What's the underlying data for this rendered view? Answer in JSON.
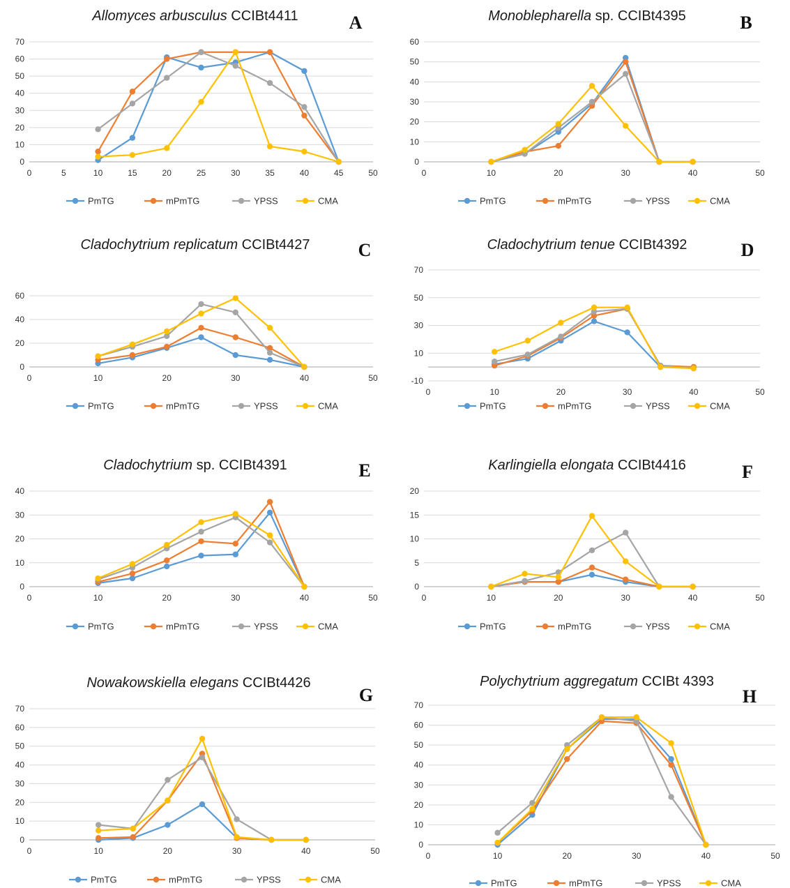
{
  "legend_labels": [
    "PmTG",
    "mPmTG",
    "YPSS",
    "CMA"
  ],
  "colors": {
    "PmTG": "#5b9bd5",
    "mPmTG": "#ed7d31",
    "YPSS": "#a5a5a5",
    "CMA": "#ffc000"
  },
  "chart_data": [
    {
      "type": "line",
      "letter": "A",
      "title_italic": "Allomyces arbusculus",
      "title_rest": " CCIBt4411",
      "xlim": [
        0,
        50
      ],
      "ylim": [
        0,
        70
      ],
      "xticks": [
        0,
        5,
        10,
        15,
        20,
        25,
        30,
        35,
        40,
        45,
        50
      ],
      "yticks": [
        0,
        10,
        20,
        30,
        40,
        50,
        60,
        70
      ],
      "x": [
        10,
        15,
        20,
        25,
        30,
        35,
        40,
        45
      ],
      "series": [
        {
          "name": "PmTG",
          "values": [
            1,
            14,
            61,
            55,
            58,
            64,
            53,
            0
          ]
        },
        {
          "name": "mPmTG",
          "values": [
            6,
            41,
            60,
            64,
            64,
            64,
            27,
            0
          ]
        },
        {
          "name": "YPSS",
          "values": [
            19,
            34,
            49,
            64,
            56,
            46,
            32,
            0
          ]
        },
        {
          "name": "CMA",
          "values": [
            3,
            4,
            8,
            35,
            64,
            9,
            6,
            0
          ]
        }
      ]
    },
    {
      "type": "line",
      "letter": "B",
      "title_italic": "Monoblepharella",
      "title_rest": " sp. CCIBt4395",
      "xlim": [
        0,
        50
      ],
      "ylim": [
        0,
        60
      ],
      "xticks": [
        0,
        10,
        20,
        30,
        40,
        50
      ],
      "yticks": [
        0,
        10,
        20,
        30,
        40,
        50,
        60
      ],
      "x": [
        10,
        15,
        20,
        25,
        30,
        35,
        40
      ],
      "series": [
        {
          "name": "PmTG",
          "values": [
            0,
            4,
            15,
            29,
            52,
            0,
            0
          ]
        },
        {
          "name": "mPmTG",
          "values": [
            0,
            5,
            8,
            28,
            50,
            0,
            0
          ]
        },
        {
          "name": "YPSS",
          "values": [
            0,
            4,
            17,
            30,
            44,
            0,
            0
          ]
        },
        {
          "name": "CMA",
          "values": [
            0,
            6,
            19,
            38,
            18,
            0,
            0
          ]
        }
      ]
    },
    {
      "type": "line",
      "letter": "C",
      "title_italic": "Cladochytrium replicatum",
      "title_rest": " CCIBt4427",
      "xlim": [
        0,
        50
      ],
      "ylim": [
        0,
        70
      ],
      "xticks": [
        0,
        10,
        20,
        30,
        40,
        50
      ],
      "yticks": [
        0,
        20,
        40,
        60
      ],
      "x": [
        10,
        15,
        20,
        25,
        30,
        35,
        40
      ],
      "series": [
        {
          "name": "PmTG",
          "values": [
            3,
            8,
            16,
            25,
            10,
            6,
            0
          ]
        },
        {
          "name": "mPmTG",
          "values": [
            6,
            10,
            17,
            33,
            25,
            16,
            0
          ]
        },
        {
          "name": "YPSS",
          "values": [
            9,
            17,
            26,
            53,
            46,
            12,
            0
          ]
        },
        {
          "name": "CMA",
          "values": [
            9,
            19,
            30,
            45,
            58,
            33,
            0
          ]
        }
      ]
    },
    {
      "type": "line",
      "letter": "D",
      "title_italic": "Cladochytrium tenue",
      "title_rest": " CCIBt4392",
      "xlim": [
        0,
        50
      ],
      "ylim": [
        -10,
        70
      ],
      "xticks": [
        0,
        10,
        20,
        30,
        40,
        50
      ],
      "yticks": [
        -10,
        10,
        30,
        50,
        70
      ],
      "x": [
        10,
        15,
        20,
        25,
        30,
        35,
        40
      ],
      "series": [
        {
          "name": "PmTG",
          "values": [
            2,
            6,
            19,
            33,
            25,
            0,
            0
          ]
        },
        {
          "name": "mPmTG",
          "values": [
            1,
            8,
            21,
            37,
            42,
            1,
            0
          ]
        },
        {
          "name": "YPSS",
          "values": [
            4,
            9,
            22,
            40,
            42,
            1,
            -1
          ]
        },
        {
          "name": "CMA",
          "values": [
            11,
            19,
            32,
            43,
            43,
            0,
            -1
          ]
        }
      ]
    },
    {
      "type": "line",
      "letter": "E",
      "title_italic": "Cladochytrium",
      "title_rest": " sp. CCIBt4391",
      "xlim": [
        0,
        50
      ],
      "ylim": [
        0,
        40
      ],
      "xticks": [
        0,
        10,
        20,
        30,
        40,
        50
      ],
      "yticks": [
        0,
        10,
        20,
        30,
        40
      ],
      "x": [
        10,
        15,
        20,
        25,
        30,
        35,
        40
      ],
      "series": [
        {
          "name": "PmTG",
          "values": [
            1.5,
            3.5,
            8.5,
            13,
            13.5,
            31,
            0
          ]
        },
        {
          "name": "mPmTG",
          "values": [
            2,
            5.5,
            11,
            19,
            18,
            35.5,
            0
          ]
        },
        {
          "name": "YPSS",
          "values": [
            3,
            8,
            16,
            23,
            29,
            18.5,
            0
          ]
        },
        {
          "name": "CMA",
          "values": [
            3.5,
            9.5,
            17.5,
            27,
            30.5,
            21.5,
            0
          ]
        }
      ]
    },
    {
      "type": "line",
      "letter": "F",
      "title_italic": "Karlingiella elongata",
      "title_rest": " CCIBt4416",
      "xlim": [
        0,
        50
      ],
      "ylim": [
        0,
        20
      ],
      "xticks": [
        0,
        10,
        20,
        30,
        40,
        50
      ],
      "yticks": [
        0,
        5,
        10,
        15,
        20
      ],
      "x": [
        10,
        15,
        20,
        25,
        30,
        35,
        40
      ],
      "series": [
        {
          "name": "PmTG",
          "values": [
            0,
            1,
            1,
            2.5,
            1,
            0,
            0
          ]
        },
        {
          "name": "mPmTG",
          "values": [
            0,
            1,
            1,
            4,
            1.5,
            0,
            0
          ]
        },
        {
          "name": "YPSS",
          "values": [
            0,
            1.2,
            3,
            7.6,
            11.3,
            0,
            0
          ]
        },
        {
          "name": "CMA",
          "values": [
            0,
            2.7,
            2,
            14.8,
            5.3,
            0,
            0
          ]
        }
      ]
    },
    {
      "type": "line",
      "letter": "G",
      "title_italic": "Nowakowskiella elegans",
      "title_rest": " CCIBt4426",
      "xlim": [
        0,
        50
      ],
      "ylim": [
        0,
        70
      ],
      "xticks": [
        0,
        10,
        20,
        30,
        40,
        50
      ],
      "yticks": [
        0,
        10,
        20,
        30,
        40,
        50,
        60,
        70
      ],
      "x": [
        10,
        15,
        20,
        25,
        30,
        35,
        40
      ],
      "series": [
        {
          "name": "PmTG",
          "values": [
            0,
            1,
            8,
            19,
            1,
            0,
            0
          ]
        },
        {
          "name": "mPmTG",
          "values": [
            1,
            1.5,
            21,
            46,
            1,
            0,
            0
          ]
        },
        {
          "name": "YPSS",
          "values": [
            8,
            6,
            32,
            44,
            11,
            0,
            0
          ]
        },
        {
          "name": "CMA",
          "values": [
            5,
            6,
            21,
            54,
            1.5,
            0,
            0
          ]
        }
      ]
    },
    {
      "type": "line",
      "letter": "H",
      "title_italic": "Polychytrium aggregatum",
      "title_rest": " CCIBt 4393",
      "xlim": [
        0,
        50
      ],
      "ylim": [
        0,
        70
      ],
      "xticks": [
        0,
        10,
        20,
        30,
        40,
        50
      ],
      "yticks": [
        0,
        10,
        20,
        30,
        40,
        50,
        60,
        70
      ],
      "x": [
        10,
        15,
        20,
        25,
        30,
        35,
        40
      ],
      "series": [
        {
          "name": "PmTG",
          "values": [
            0,
            15,
            48,
            63,
            63,
            43,
            0
          ]
        },
        {
          "name": "mPmTG",
          "values": [
            1,
            17,
            43,
            62,
            61,
            40,
            0
          ]
        },
        {
          "name": "YPSS",
          "values": [
            6,
            21,
            50,
            64,
            62,
            24,
            0
          ]
        },
        {
          "name": "CMA",
          "values": [
            1,
            18,
            48,
            64,
            64,
            51,
            0
          ]
        }
      ]
    }
  ]
}
